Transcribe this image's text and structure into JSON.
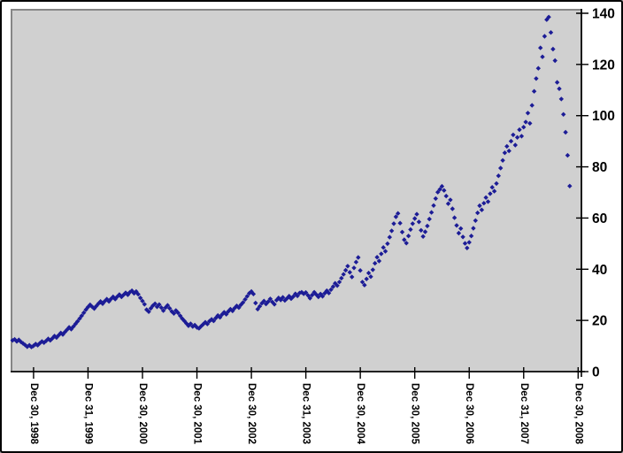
{
  "chart_data": {
    "type": "scatter",
    "title": "",
    "xlabel": "",
    "ylabel": "",
    "legend": "none",
    "grid": false,
    "marker": "diamond",
    "colors": {
      "marker": "#1C1C96",
      "plot_background": "#D0D0D0",
      "plot_border": "#868686",
      "axis": "#000000",
      "outer_background": "#FFFFFF",
      "label_text": "#000000"
    },
    "y_axis_side": "right",
    "ylim": [
      0,
      140
    ],
    "y_ticks": [
      0,
      20,
      40,
      60,
      80,
      100,
      120,
      140
    ],
    "x_tick_labels": [
      "Dec 30, 1998",
      "Dec 31, 1999",
      "Dec 30, 2000",
      "Dec 30, 2001",
      "Dec 30, 2002",
      "Dec 31, 2003",
      "Dec 30, 2004",
      "Dec 30, 2005",
      "Dec 30, 2006",
      "Dec 31, 2007",
      "Dec 30, 2008"
    ],
    "x_tick_t": [
      0,
      1,
      2,
      3,
      4,
      5,
      6,
      7,
      8,
      9,
      10
    ],
    "x_encoding": "t = years after Dec 30, 1998; points sampled ~biweekly",
    "xlim": [
      -0.405,
      10.06
    ],
    "t_start": -0.385,
    "t_step": 0.0384615,
    "values": [
      12.2,
      12.6,
      11.8,
      12.4,
      11.6,
      11.0,
      10.4,
      9.7,
      10.3,
      9.6,
      10.1,
      10.8,
      10.3,
      11.1,
      11.8,
      11.3,
      12.0,
      12.8,
      12.2,
      13.0,
      13.9,
      13.3,
      14.2,
      15.1,
      14.5,
      15.5,
      16.4,
      17.3,
      16.6,
      17.6,
      18.6,
      19.6,
      20.7,
      21.8,
      23.0,
      24.2,
      25.2,
      26.1,
      25.3,
      24.6,
      25.6,
      26.6,
      27.4,
      26.5,
      27.5,
      28.3,
      27.4,
      28.4,
      29.2,
      28.3,
      29.3,
      30.1,
      29.2,
      30.0,
      30.8,
      30.0,
      31.0,
      31.6,
      30.6,
      31.3,
      30.2,
      28.8,
      27.6,
      26.3,
      24.2,
      23.4,
      24.7,
      25.8,
      26.5,
      25.3,
      26.2,
      25.0,
      23.8,
      25.0,
      25.9,
      24.7,
      23.5,
      22.7,
      23.9,
      23.0,
      21.8,
      20.7,
      19.8,
      18.8,
      17.9,
      18.7,
      17.6,
      18.2,
      17.3,
      16.9,
      17.7,
      18.5,
      19.3,
      18.6,
      19.7,
      20.4,
      19.8,
      20.9,
      21.9,
      21.2,
      22.3,
      23.2,
      22.4,
      23.5,
      24.4,
      23.7,
      24.8,
      25.7,
      25.0,
      26.1,
      27.0,
      28.2,
      29.4,
      30.6,
      31.3,
      30.3,
      26.8,
      24.4,
      25.5,
      26.7,
      27.6,
      26.4,
      27.3,
      28.4,
      27.2,
      26.3,
      27.9,
      28.8,
      28.0,
      29.0,
      27.8,
      28.6,
      29.5,
      28.5,
      29.3,
      30.4,
      29.6,
      30.7,
      31.0,
      30.4,
      30.9,
      29.8,
      28.7,
      29.9,
      31.0,
      30.1,
      29.2,
      30.3,
      29.4,
      30.6,
      31.6,
      30.7,
      32.0,
      33.2,
      34.5,
      33.6,
      35.0,
      36.5,
      38.0,
      39.6,
      41.2,
      38.8,
      37.0,
      40.5,
      42.8,
      44.6,
      39.5,
      35.0,
      33.8,
      36.2,
      38.5,
      37.1,
      39.8,
      42.3,
      44.7,
      43.2,
      46.0,
      48.5,
      47.0,
      50.0,
      52.5,
      55.0,
      57.8,
      60.5,
      61.8,
      58.0,
      54.5,
      51.5,
      50.2,
      53.0,
      55.5,
      57.8,
      59.8,
      61.5,
      58.5,
      55.2,
      52.8,
      54.6,
      56.9,
      59.6,
      62.2,
      64.9,
      67.6,
      70.1,
      71.2,
      72.4,
      70.8,
      68.6,
      65.6,
      67.1,
      63.6,
      60.1,
      57.1,
      54.1,
      55.9,
      52.6,
      50.1,
      48.3,
      50.5,
      53.0,
      56.0,
      59.0,
      62.0,
      64.8,
      63.2,
      65.8,
      68.0,
      66.4,
      69.5,
      72.0,
      70.5,
      73.5,
      76.5,
      79.5,
      82.5,
      85.5,
      88.0,
      86.2,
      90.0,
      92.5,
      88.5,
      91.5,
      94.5,
      92.0,
      95.5,
      97.5,
      101.0,
      97.0,
      104.0,
      109.5,
      114.5,
      118.5,
      126.5,
      123.0,
      131.0,
      137.5,
      138.5,
      132.5,
      126.0,
      121.5,
      113.0,
      110.5,
      106.5,
      100.5,
      93.5,
      84.5,
      72.5
    ]
  }
}
